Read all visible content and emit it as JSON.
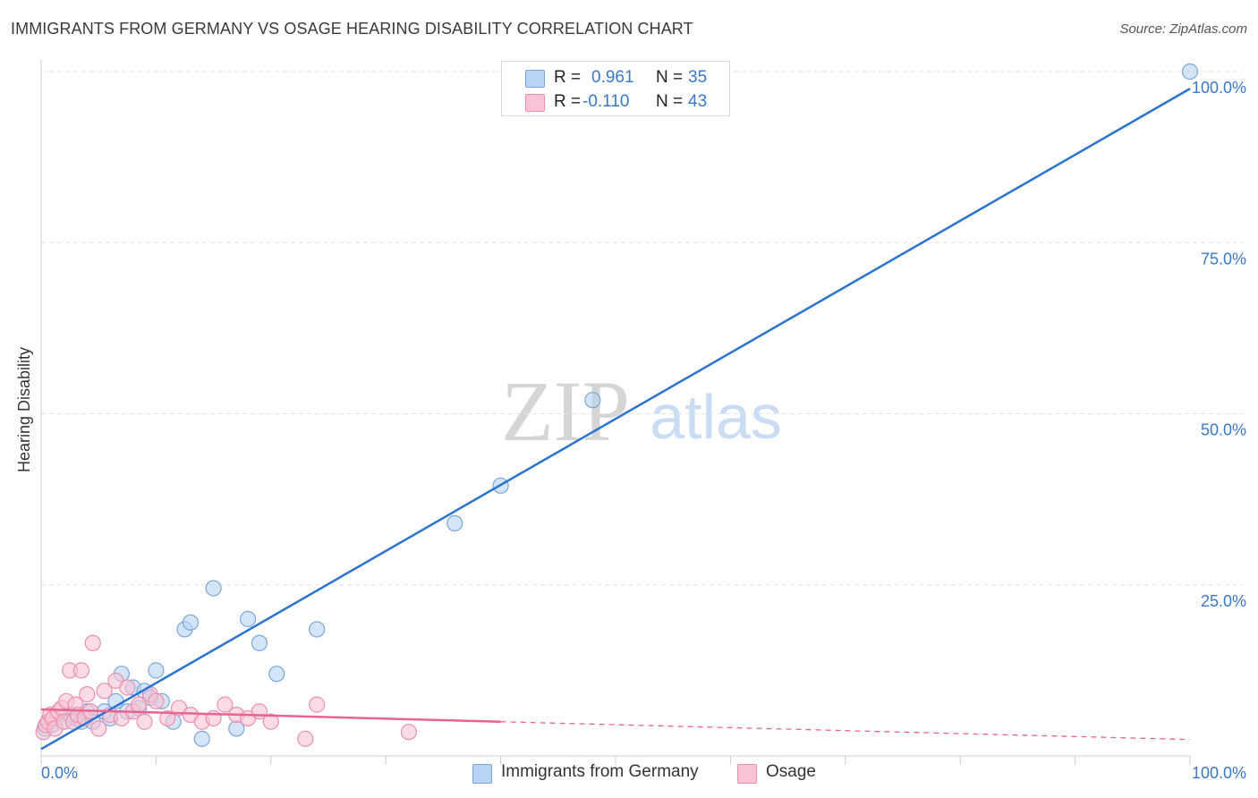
{
  "title": "IMMIGRANTS FROM GERMANY VS OSAGE HEARING DISABILITY CORRELATION CHART",
  "source": "Source: ZipAtlas.com",
  "watermark": {
    "zip": "ZIP",
    "atlas": "atlas"
  },
  "colors": {
    "blue_fill": "#b8d3f3",
    "blue_stroke": "#7aa6dd",
    "blue_line": "#2b73d0",
    "pink_fill": "#f9c3d3",
    "pink_stroke": "#ee8fae",
    "pink_line": "#e8638f",
    "tick_label": "#3a78c9",
    "grid": "#e3e3e3"
  },
  "stats_legend": {
    "rows": [
      {
        "r_label": "R =",
        "r_value": "0.961",
        "n_label": "N =",
        "n_value": "35",
        "color": "blue"
      },
      {
        "r_label": "R =",
        "r_value": "-0.110",
        "n_label": "N =",
        "n_value": "43",
        "color": "pink"
      }
    ]
  },
  "bottom_legend": [
    {
      "label": "Immigrants from Germany",
      "color": "blue"
    },
    {
      "label": "Osage",
      "color": "pink"
    }
  ],
  "chart_data": {
    "type": "scatter",
    "xlabel": "",
    "ylabel": "Hearing Disability",
    "xlim": [
      0,
      100
    ],
    "ylim": [
      0,
      100
    ],
    "x_tick_labels": [
      {
        "value": 0,
        "label": "0.0%"
      },
      {
        "value": 100,
        "label": "100.0%"
      }
    ],
    "y_tick_labels": [
      {
        "value": 25,
        "label": "25.0%"
      },
      {
        "value": 50,
        "label": "50.0%"
      },
      {
        "value": 75,
        "label": "75.0%"
      },
      {
        "value": 100,
        "label": "100.0%"
      }
    ],
    "grid": true,
    "legend_position": "bottom",
    "series": [
      {
        "name": "Immigrants from Germany",
        "color": "blue",
        "points": [
          [
            0.3,
            4.0
          ],
          [
            0.6,
            5.0
          ],
          [
            0.9,
            4.5
          ],
          [
            1.2,
            5.5
          ],
          [
            2.0,
            5.0
          ],
          [
            2.5,
            6.0
          ],
          [
            3.0,
            5.5
          ],
          [
            3.5,
            5.0
          ],
          [
            4.0,
            6.5
          ],
          [
            4.5,
            5.0
          ],
          [
            5.5,
            6.5
          ],
          [
            6.0,
            5.5
          ],
          [
            6.5,
            8.0
          ],
          [
            7.0,
            12.0
          ],
          [
            7.5,
            6.5
          ],
          [
            8.0,
            10.0
          ],
          [
            8.5,
            7.0
          ],
          [
            9.0,
            9.5
          ],
          [
            9.5,
            8.5
          ],
          [
            10.0,
            12.5
          ],
          [
            10.5,
            8.0
          ],
          [
            11.5,
            5.0
          ],
          [
            12.5,
            18.5
          ],
          [
            13.0,
            19.5
          ],
          [
            14.0,
            2.5
          ],
          [
            15.0,
            24.5
          ],
          [
            17.0,
            4.0
          ],
          [
            18.0,
            20.0
          ],
          [
            19.0,
            16.5
          ],
          [
            20.5,
            12.0
          ],
          [
            24.0,
            18.5
          ],
          [
            36.0,
            34.0
          ],
          [
            40.0,
            39.5
          ],
          [
            48.0,
            52.0
          ],
          [
            100.0,
            100.0
          ]
        ],
        "trend": {
          "x0": 0,
          "y0": 1.0,
          "x1": 100,
          "y1": 97.5
        }
      },
      {
        "name": "Osage",
        "color": "pink",
        "points": [
          [
            0.2,
            3.5
          ],
          [
            0.4,
            4.5
          ],
          [
            0.6,
            5.0
          ],
          [
            0.8,
            6.0
          ],
          [
            1.0,
            5.5
          ],
          [
            1.2,
            4.0
          ],
          [
            1.5,
            6.5
          ],
          [
            1.8,
            7.0
          ],
          [
            2.0,
            5.0
          ],
          [
            2.2,
            8.0
          ],
          [
            2.5,
            12.5
          ],
          [
            2.8,
            5.0
          ],
          [
            3.0,
            7.5
          ],
          [
            3.2,
            6.0
          ],
          [
            3.5,
            12.5
          ],
          [
            3.8,
            5.5
          ],
          [
            4.0,
            9.0
          ],
          [
            4.3,
            6.5
          ],
          [
            4.5,
            16.5
          ],
          [
            5.0,
            4.0
          ],
          [
            5.5,
            9.5
          ],
          [
            6.0,
            6.0
          ],
          [
            6.5,
            11.0
          ],
          [
            7.0,
            5.5
          ],
          [
            7.5,
            10.0
          ],
          [
            8.0,
            6.5
          ],
          [
            8.5,
            7.5
          ],
          [
            9.0,
            5.0
          ],
          [
            9.5,
            9.0
          ],
          [
            10.0,
            8.0
          ],
          [
            11.0,
            5.5
          ],
          [
            12.0,
            7.0
          ],
          [
            13.0,
            6.0
          ],
          [
            14.0,
            5.0
          ],
          [
            15.0,
            5.5
          ],
          [
            16.0,
            7.5
          ],
          [
            17.0,
            6.0
          ],
          [
            18.0,
            5.5
          ],
          [
            19.0,
            6.5
          ],
          [
            20.0,
            5.0
          ],
          [
            23.0,
            2.5
          ],
          [
            24.0,
            7.5
          ],
          [
            32.0,
            3.5
          ]
        ],
        "trend": {
          "x0": 0,
          "y0": 6.8,
          "x1": 40,
          "y1": 5.0,
          "dash_to": 100,
          "dash_y1": 2.4
        }
      }
    ]
  }
}
